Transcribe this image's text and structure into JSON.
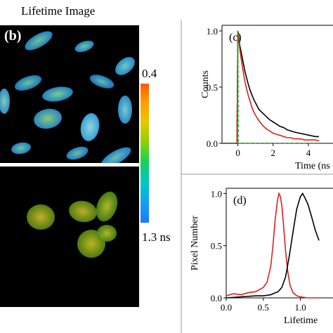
{
  "figure": {
    "title": "Lifetime Image",
    "panel_b_label": "(b)",
    "colorbar_top": "0.4",
    "colorbar_bottom": "1.3 ns"
  },
  "colors": {
    "red": "#e0201c",
    "black": "#000000",
    "green_dashed": "#1aa81a"
  },
  "chart_data": [
    {
      "type": "line",
      "panel_label": "(c)",
      "xlabel": "Time (ns",
      "ylabel": "Counts",
      "xlim": [
        -0.9,
        4.6
      ],
      "ylim": [
        0,
        1.05
      ],
      "xticks": [
        0,
        2,
        4
      ],
      "xtick_labels": [
        "0",
        "2",
        "4"
      ],
      "yticks": [
        0.0,
        0.5,
        1.0
      ],
      "ytick_labels": [
        "0.0",
        "0.5",
        "1.0"
      ],
      "series": [
        {
          "color": "black",
          "style": "solid",
          "x": [
            -0.9,
            -0.05,
            0.0,
            0.05,
            0.1,
            0.2,
            0.3,
            0.4,
            0.5,
            0.6,
            0.7,
            0.8,
            0.9,
            1.0,
            1.2,
            1.4,
            1.6,
            1.8,
            2.0,
            2.2,
            2.4,
            2.6,
            2.8,
            3.0,
            3.2,
            3.5,
            3.8,
            4.1,
            4.4,
            4.6
          ],
          "y": [
            0.0,
            0.0,
            1.0,
            0.96,
            0.88,
            0.8,
            0.72,
            0.64,
            0.58,
            0.52,
            0.47,
            0.43,
            0.39,
            0.36,
            0.3,
            0.27,
            0.24,
            0.21,
            0.19,
            0.17,
            0.15,
            0.14,
            0.12,
            0.11,
            0.1,
            0.09,
            0.08,
            0.07,
            0.06,
            0.06
          ]
        },
        {
          "color": "red",
          "style": "solid",
          "x": [
            -0.9,
            -0.05,
            0.0,
            0.05,
            0.1,
            0.2,
            0.3,
            0.4,
            0.5,
            0.6,
            0.7,
            0.8,
            0.9,
            1.0,
            1.2,
            1.4,
            1.6,
            1.8,
            2.0,
            2.2,
            2.4,
            2.6,
            2.8,
            3.0,
            3.2,
            3.5,
            3.8,
            4.1,
            4.4,
            4.6
          ],
          "y": [
            0.0,
            0.0,
            1.0,
            0.95,
            0.85,
            0.74,
            0.64,
            0.55,
            0.48,
            0.42,
            0.37,
            0.32,
            0.28,
            0.25,
            0.2,
            0.16,
            0.13,
            0.11,
            0.09,
            0.08,
            0.07,
            0.06,
            0.05,
            0.05,
            0.04,
            0.04,
            0.03,
            0.03,
            0.03,
            0.02
          ]
        },
        {
          "color": "green_dashed",
          "style": "dashed",
          "x": [
            -0.9,
            -0.02,
            0.0,
            0.02,
            0.05,
            4.6
          ],
          "y": [
            0.0,
            0.0,
            1.0,
            0.0,
            0.0,
            0.0
          ]
        }
      ]
    },
    {
      "type": "line",
      "panel_label": "(d)",
      "xlabel": "Lifetime",
      "ylabel": "Pixel Number",
      "xlim": [
        0.0,
        1.25
      ],
      "ylim": [
        0,
        1.05
      ],
      "xticks": [
        0.0,
        0.5,
        1.0
      ],
      "xtick_labels": [
        "0.0",
        "0.5",
        "1.0"
      ],
      "yticks": [
        0.0,
        0.5,
        1.0
      ],
      "ytick_labels": [
        "0.0",
        "0.5",
        "1.0"
      ],
      "series": [
        {
          "color": "red",
          "style": "solid",
          "x": [
            0.0,
            0.1,
            0.2,
            0.3,
            0.4,
            0.45,
            0.5,
            0.55,
            0.6,
            0.63,
            0.66,
            0.69,
            0.71,
            0.73,
            0.75,
            0.77,
            0.8,
            0.83,
            0.86,
            0.9,
            0.95,
            1.0,
            1.1,
            1.25
          ],
          "y": [
            0.02,
            0.04,
            0.03,
            0.05,
            0.06,
            0.08,
            0.1,
            0.15,
            0.3,
            0.5,
            0.75,
            0.93,
            1.0,
            0.97,
            0.88,
            0.72,
            0.45,
            0.25,
            0.12,
            0.05,
            0.02,
            0.01,
            0.0,
            0.0
          ]
        },
        {
          "color": "black",
          "style": "solid",
          "x": [
            0.0,
            0.2,
            0.4,
            0.5,
            0.6,
            0.7,
            0.75,
            0.8,
            0.85,
            0.9,
            0.95,
            1.0,
            1.03,
            1.06,
            1.1,
            1.15,
            1.2,
            1.25
          ],
          "y": [
            0.0,
            0.01,
            0.02,
            0.02,
            0.03,
            0.06,
            0.1,
            0.2,
            0.4,
            0.63,
            0.85,
            0.97,
            1.0,
            0.96,
            0.9,
            0.78,
            0.65,
            0.55
          ]
        }
      ]
    }
  ]
}
